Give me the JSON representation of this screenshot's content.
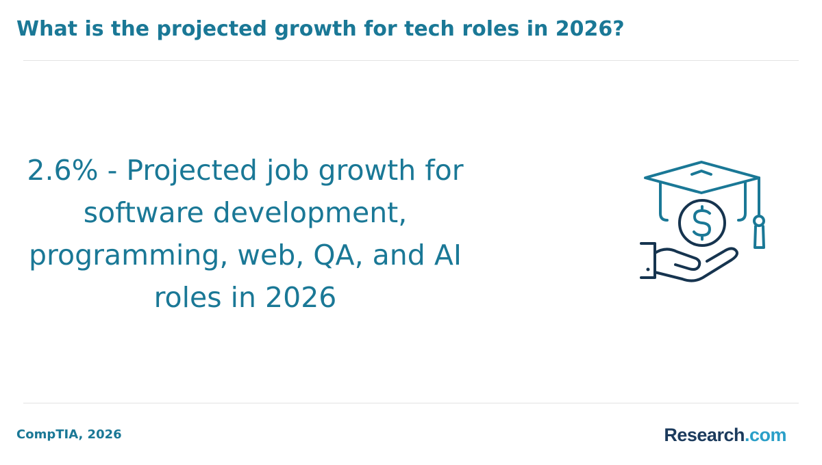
{
  "header": {
    "title": "What is the projected growth for tech roles in 2026?"
  },
  "main": {
    "stat_text": "2.6% - Projected job growth for software development, programming, web, QA, and AI roles in 2026",
    "illustration_icon": "graduation-cap-coin-hand-icon"
  },
  "footer": {
    "source": "CompTIA, 2026",
    "brand": {
      "name": "Research",
      "tld": ".com"
    }
  },
  "colors": {
    "accent": "#1a7896",
    "icon_dark": "#16344f",
    "brand_dark": "#1b3a5c",
    "brand_light": "#2a9fc8",
    "divider": "#e3e3e3"
  }
}
